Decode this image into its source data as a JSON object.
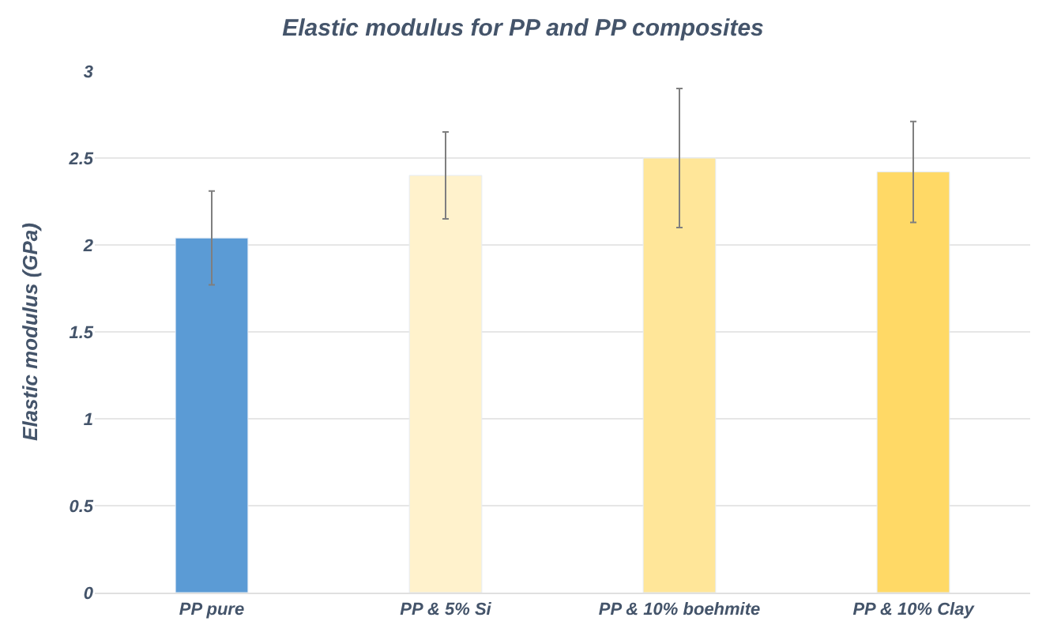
{
  "chart_data": {
    "type": "bar",
    "title": "Elastic modulus for PP and PP composites",
    "ylabel": "Elastic modulus (GPa)",
    "categories": [
      "PP pure",
      "PP & 5% Si",
      "PP & 10% boehmite",
      "PP & 10% Clay"
    ],
    "values": [
      2.04,
      2.4,
      2.5,
      2.42
    ],
    "errors": [
      0.27,
      0.25,
      0.4,
      0.29
    ],
    "colors": [
      "#5b9bd5",
      "#fff2cc",
      "#ffe699",
      "#ffd966"
    ],
    "ylim": [
      0,
      3
    ],
    "yticks": [
      0,
      0.5,
      1,
      1.5,
      2,
      2.5,
      3
    ],
    "grid": "y"
  }
}
